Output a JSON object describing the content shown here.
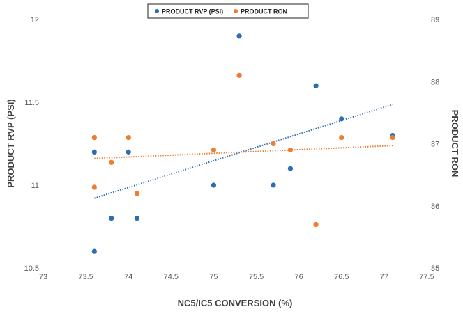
{
  "chart_data": {
    "type": "scatter",
    "title": "",
    "xlabel": "NC5/IC5 CONVERSION (%)",
    "ylabel": "PRODUCT RVP (PSI)",
    "y2label": "PRODUCT RON",
    "xlim": [
      73,
      77.5
    ],
    "ylim": [
      10.5,
      12
    ],
    "y2lim": [
      85,
      89
    ],
    "xticks": [
      "73",
      "73.5",
      "74",
      "74.5",
      "75",
      "75.5",
      "76",
      "76.5",
      "77",
      "77.5"
    ],
    "yticks": [
      "10.5",
      "11",
      "11.5",
      "12"
    ],
    "y2ticks": [
      "85",
      "86",
      "87",
      "88",
      "89"
    ],
    "grid": false,
    "legend_position": "top",
    "series": [
      {
        "name": "PRODUCT RVP (PSI)",
        "axis": "left",
        "color": "#2e6db4",
        "trendline": "linear",
        "x": [
          73.6,
          73.6,
          73.8,
          74.0,
          74.1,
          75.0,
          75.3,
          75.7,
          75.9,
          76.2,
          76.5,
          77.1
        ],
        "y": [
          11.2,
          10.6,
          10.8,
          11.2,
          10.8,
          11.0,
          11.9,
          11.0,
          11.1,
          11.6,
          11.4,
          11.3
        ]
      },
      {
        "name": "PRODUCT RON",
        "axis": "right",
        "color": "#ed7d31",
        "trendline": "linear",
        "x": [
          73.6,
          73.6,
          73.8,
          74.0,
          74.1,
          75.0,
          75.3,
          75.7,
          75.9,
          76.2,
          76.5,
          77.1
        ],
        "y": [
          87.1,
          86.3,
          86.7,
          87.1,
          86.2,
          86.9,
          88.1,
          87.0,
          86.9,
          85.7,
          87.1,
          87.1
        ]
      }
    ]
  }
}
